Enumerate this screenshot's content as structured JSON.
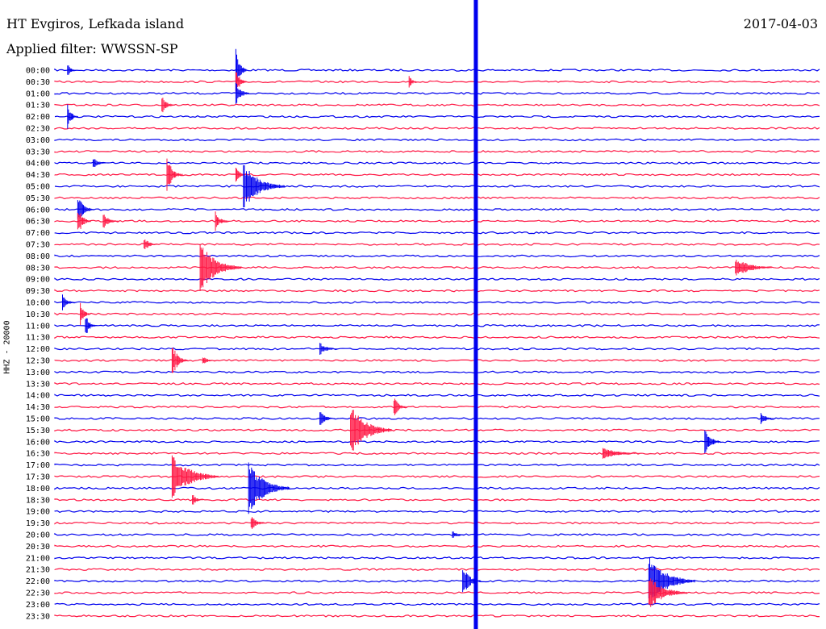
{
  "header": {
    "station": "HT Evgiros, Lefkada island",
    "filter": "Applied filter: WWSSN-SP",
    "date": "2017-04-03"
  },
  "channel_label": "HHZ - 20000",
  "colors": {
    "even_rows": "#0000ee",
    "odd_rows": "#ff1744"
  },
  "chart_data": {
    "type": "line",
    "title": "HT Evgiros, Lefkada island",
    "subtitle": "Applied filter: WWSSN-SP",
    "ylabel": "HHZ - 20000",
    "xlabel": "",
    "date": "2017-04-03",
    "row_interval_minutes": 30,
    "rows": [
      "00:00",
      "00:30",
      "01:00",
      "01:30",
      "02:00",
      "02:30",
      "03:00",
      "03:30",
      "04:00",
      "04:30",
      "05:00",
      "05:30",
      "06:00",
      "06:30",
      "07:00",
      "07:30",
      "08:00",
      "08:30",
      "09:00",
      "09:30",
      "10:00",
      "10:30",
      "11:00",
      "11:30",
      "12:00",
      "12:30",
      "13:00",
      "13:30",
      "14:00",
      "14:30",
      "15:00",
      "15:30",
      "16:00",
      "16:30",
      "17:00",
      "17:30",
      "18:00",
      "18:30",
      "19:00",
      "19:30",
      "20:00",
      "20:30",
      "21:00",
      "21:30",
      "22:00",
      "22:30",
      "23:00",
      "23:30"
    ],
    "grid": false,
    "events": [
      {
        "row": 0,
        "minute": 0.5,
        "amp": 9,
        "decay": 0.3
      },
      {
        "row": 1,
        "minute": 13.9,
        "amp": 10,
        "decay": 0.3
      },
      {
        "row": 3,
        "minute": 4.2,
        "amp": 12,
        "decay": 0.5
      },
      {
        "row": 0,
        "minute": 7.1,
        "amp": 30,
        "decay": 0.4
      },
      {
        "row": 1,
        "minute": 7.1,
        "amp": 20,
        "decay": 0.4
      },
      {
        "row": 2,
        "minute": 7.1,
        "amp": 18,
        "decay": 0.5
      },
      {
        "row": 4,
        "minute": 0.5,
        "amp": 16,
        "decay": 0.4
      },
      {
        "row": 8,
        "minute": 1.5,
        "amp": 8,
        "decay": 0.5
      },
      {
        "row": 9,
        "minute": 4.4,
        "amp": 22,
        "decay": 0.6
      },
      {
        "row": 9,
        "minute": 7.1,
        "amp": 10,
        "decay": 0.4
      },
      {
        "row": 10,
        "minute": 7.4,
        "amp": 30,
        "decay": 1.6
      },
      {
        "row": 12,
        "minute": 0.9,
        "amp": 18,
        "decay": 0.6
      },
      {
        "row": 13,
        "minute": 0.9,
        "amp": 20,
        "decay": 0.5
      },
      {
        "row": 13,
        "minute": 1.9,
        "amp": 10,
        "decay": 0.6
      },
      {
        "row": 13,
        "minute": 6.3,
        "amp": 12,
        "decay": 0.5
      },
      {
        "row": 15,
        "minute": 3.5,
        "amp": 10,
        "decay": 0.5
      },
      {
        "row": 17,
        "minute": 5.7,
        "amp": 32,
        "decay": 1.6
      },
      {
        "row": 17,
        "minute": 26.7,
        "amp": 14,
        "decay": 1.4
      },
      {
        "row": 20,
        "minute": 0.3,
        "amp": 10,
        "decay": 0.5
      },
      {
        "row": 21,
        "minute": 1.0,
        "amp": 14,
        "decay": 0.4
      },
      {
        "row": 22,
        "minute": 1.2,
        "amp": 16,
        "decay": 0.4
      },
      {
        "row": 24,
        "minute": 10.4,
        "amp": 8,
        "decay": 0.7
      },
      {
        "row": 25,
        "minute": 4.6,
        "amp": 22,
        "decay": 0.6
      },
      {
        "row": 25,
        "minute": 5.8,
        "amp": 6,
        "decay": 0.5
      },
      {
        "row": 29,
        "minute": 13.3,
        "amp": 14,
        "decay": 0.5
      },
      {
        "row": 30,
        "minute": 10.4,
        "amp": 10,
        "decay": 0.6
      },
      {
        "row": 30,
        "minute": 27.7,
        "amp": 10,
        "decay": 0.5
      },
      {
        "row": 31,
        "minute": 11.6,
        "amp": 34,
        "decay": 1.6
      },
      {
        "row": 32,
        "minute": 25.5,
        "amp": 20,
        "decay": 0.6
      },
      {
        "row": 33,
        "minute": 21.5,
        "amp": 8,
        "decay": 1.5
      },
      {
        "row": 35,
        "minute": 4.6,
        "amp": 30,
        "decay": 1.8
      },
      {
        "row": 36,
        "minute": 7.6,
        "amp": 34,
        "decay": 1.6
      },
      {
        "row": 37,
        "minute": 5.4,
        "amp": 8,
        "decay": 0.4
      },
      {
        "row": 39,
        "minute": 7.7,
        "amp": 10,
        "decay": 0.6
      },
      {
        "row": 40,
        "minute": 15.6,
        "amp": 6,
        "decay": 0.5
      },
      {
        "row": 44,
        "minute": 16.0,
        "amp": 20,
        "decay": 0.7
      },
      {
        "row": 44,
        "minute": 23.3,
        "amp": 34,
        "decay": 1.8
      },
      {
        "row": 45,
        "minute": 23.3,
        "amp": 22,
        "decay": 1.5
      }
    ],
    "gap": {
      "minute": 16.5
    }
  }
}
